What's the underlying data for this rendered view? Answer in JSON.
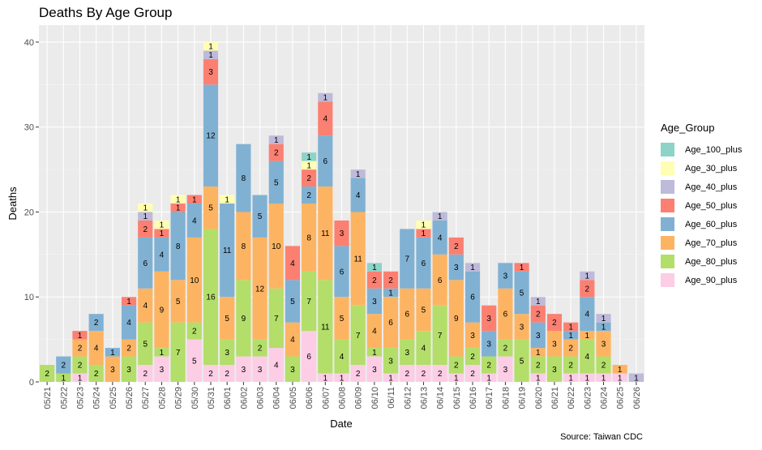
{
  "chart_data": {
    "type": "bar",
    "stacked": true,
    "title": "Deaths By Age Group",
    "xlabel": "Date",
    "ylabel": "Deaths",
    "caption": "Source: Taiwan CDC",
    "legend_title": "Age_Group",
    "legend_position": "right",
    "ylim": [
      0,
      42
    ],
    "yticks": [
      0,
      10,
      20,
      30,
      40
    ],
    "grid": true,
    "categories": [
      "05/21",
      "05/22",
      "05/23",
      "05/24",
      "05/25",
      "05/26",
      "05/27",
      "05/28",
      "05/29",
      "05/30",
      "05/31",
      "06/01",
      "06/02",
      "06/03",
      "06/04",
      "06/05",
      "06/06",
      "06/07",
      "06/08",
      "06/09",
      "06/10",
      "06/11",
      "06/12",
      "06/13",
      "06/14",
      "06/15",
      "06/16",
      "06/17",
      "06/18",
      "06/19",
      "06/20",
      "06/21",
      "06/22",
      "06/23",
      "06/24",
      "06/25",
      "06/26"
    ],
    "series": [
      {
        "name": "Age_100_plus",
        "color": "#8DD3C7",
        "values": [
          0,
          0,
          0,
          0,
          0,
          0,
          0,
          0,
          0,
          0,
          0,
          0,
          0,
          0,
          0,
          0,
          1,
          0,
          0,
          0,
          1,
          0,
          0,
          0,
          0,
          0,
          0,
          0,
          0,
          0,
          0,
          0,
          0,
          0,
          0,
          0,
          0
        ]
      },
      {
        "name": "Age_30_plus",
        "color": "#FFFFB3",
        "values": [
          0,
          0,
          0,
          0,
          0,
          0,
          1,
          1,
          1,
          0,
          1,
          1,
          0,
          0,
          0,
          0,
          1,
          0,
          0,
          0,
          0,
          0,
          0,
          1,
          0,
          0,
          0,
          0,
          0,
          0,
          0,
          0,
          0,
          0,
          0,
          0,
          0
        ]
      },
      {
        "name": "Age_40_plus",
        "color": "#BEBADA",
        "values": [
          0,
          0,
          0,
          0,
          0,
          0,
          1,
          0,
          0,
          0,
          1,
          0,
          0,
          0,
          1,
          0,
          0,
          1,
          0,
          1,
          0,
          0,
          0,
          0,
          1,
          0,
          1,
          0,
          0,
          0,
          1,
          0,
          0,
          1,
          1,
          0,
          1
        ]
      },
      {
        "name": "Age_50_plus",
        "color": "#FB8072",
        "values": [
          0,
          0,
          1,
          0,
          0,
          1,
          2,
          1,
          1,
          1,
          3,
          0,
          0,
          0,
          2,
          4,
          2,
          4,
          3,
          0,
          2,
          2,
          0,
          1,
          0,
          2,
          0,
          3,
          0,
          1,
          2,
          2,
          1,
          2,
          0,
          0,
          0
        ]
      },
      {
        "name": "Age_60_plus",
        "color": "#80B1D3",
        "values": [
          0,
          2,
          0,
          2,
          1,
          4,
          6,
          4,
          8,
          4,
          12,
          11,
          8,
          5,
          5,
          5,
          2,
          6,
          6,
          4,
          3,
          1,
          7,
          6,
          4,
          3,
          6,
          3,
          3,
          5,
          3,
          0,
          1,
          4,
          1,
          0,
          0
        ]
      },
      {
        "name": "Age_70_plus",
        "color": "#FDB462",
        "values": [
          0,
          0,
          2,
          4,
          3,
          2,
          4,
          9,
          5,
          10,
          5,
          5,
          8,
          12,
          10,
          4,
          8,
          11,
          5,
          11,
          4,
          6,
          6,
          5,
          6,
          9,
          3,
          0,
          6,
          3,
          1,
          3,
          2,
          1,
          3,
          1,
          0
        ]
      },
      {
        "name": "Age_80_plus",
        "color": "#B3DE69",
        "values": [
          2,
          1,
          2,
          2,
          0,
          3,
          5,
          1,
          7,
          2,
          16,
          3,
          9,
          2,
          7,
          3,
          7,
          11,
          4,
          7,
          1,
          3,
          3,
          4,
          7,
          2,
          2,
          2,
          2,
          5,
          2,
          3,
          2,
          4,
          2,
          0,
          0
        ]
      },
      {
        "name": "Age_90_plus",
        "color": "#FCCDE5",
        "values": [
          0,
          0,
          1,
          0,
          0,
          0,
          2,
          3,
          0,
          5,
          2,
          2,
          3,
          3,
          4,
          0,
          6,
          1,
          1,
          2,
          3,
          1,
          2,
          2,
          2,
          1,
          2,
          1,
          3,
          0,
          1,
          0,
          1,
          1,
          1,
          1,
          0
        ]
      }
    ]
  }
}
